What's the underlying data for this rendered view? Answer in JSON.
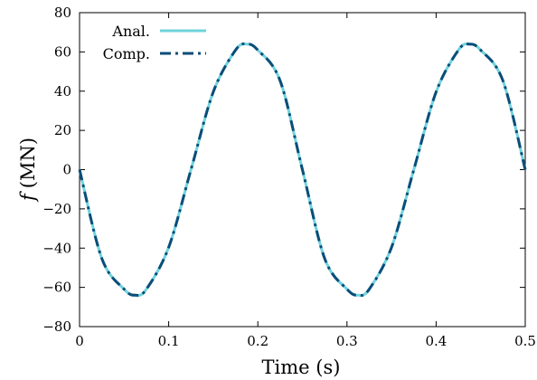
{
  "chart_data": {
    "type": "line",
    "xlabel": "Time (s)",
    "ylabel_symbol": "f",
    "ylabel_unit": "(MN)",
    "xlim": [
      0,
      0.5
    ],
    "ylim": [
      -80,
      80
    ],
    "xticks": [
      0,
      0.1,
      0.2,
      0.3,
      0.4,
      0.5
    ],
    "xtick_labels": [
      "0",
      "0.1",
      "0.2",
      "0.3",
      "0.4",
      "0.5"
    ],
    "yticks": [
      -80,
      -60,
      -40,
      -20,
      0,
      20,
      40,
      60,
      80
    ],
    "ytick_labels": [
      "−80",
      "−60",
      "−40",
      "−20",
      "0",
      "20",
      "40",
      "60",
      "80"
    ],
    "grid": false,
    "legend_position": "top-left",
    "series": [
      {
        "name": "Anal.",
        "color": "#6fd3dc",
        "style": "solid",
        "x": [
          0,
          0.025,
          0.05,
          0.0625,
          0.075,
          0.1,
          0.125,
          0.15,
          0.175,
          0.1875,
          0.2,
          0.225,
          0.25,
          0.275,
          0.3,
          0.3125,
          0.325,
          0.35,
          0.375,
          0.4,
          0.425,
          0.4375,
          0.45,
          0.475,
          0.5
        ],
        "y": [
          0,
          -45.3,
          -60.9,
          -64,
          -60.9,
          -39.6,
          0,
          39.6,
          60.9,
          64,
          60.9,
          45.3,
          0,
          -45.3,
          -60.9,
          -64,
          -60.9,
          -39.6,
          0,
          39.6,
          60.9,
          64,
          60.9,
          45.3,
          0
        ]
      },
      {
        "name": "Comp.",
        "color": "#0b4d78",
        "style": "dash-dot",
        "x": [
          0,
          0.025,
          0.05,
          0.0625,
          0.075,
          0.1,
          0.125,
          0.15,
          0.175,
          0.1875,
          0.2,
          0.225,
          0.25,
          0.275,
          0.3,
          0.3125,
          0.325,
          0.35,
          0.375,
          0.4,
          0.425,
          0.4375,
          0.45,
          0.475,
          0.5
        ],
        "y": [
          0,
          -45.3,
          -60.9,
          -64,
          -60.9,
          -39.6,
          0,
          39.6,
          60.9,
          64,
          60.9,
          45.3,
          0,
          -45.3,
          -60.9,
          -64,
          -60.9,
          -39.6,
          0,
          39.6,
          60.9,
          64,
          60.9,
          45.3,
          0
        ]
      }
    ]
  }
}
